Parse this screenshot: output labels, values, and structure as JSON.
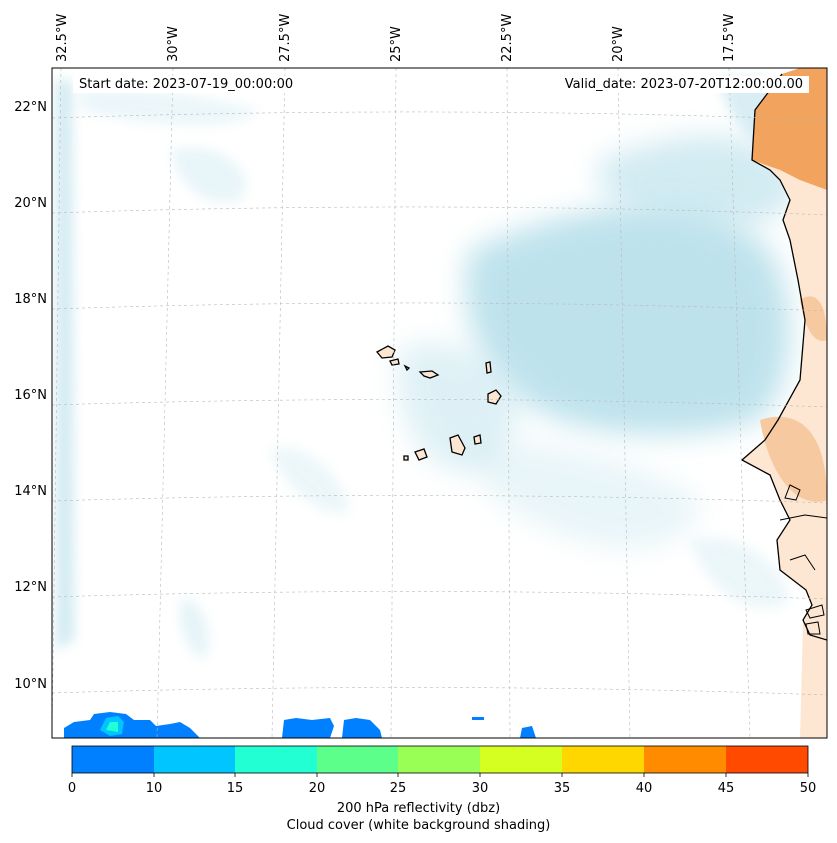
{
  "map": {
    "start_date_text": "Start date: 2023-07-19_00:00:00",
    "valid_date_text": "Valid_date: 2023-07-20T12:00:00.00",
    "lon_labels": [
      "32.5°W",
      "30°W",
      "27.5°W",
      "25°W",
      "22.5°W",
      "20°W",
      "17.5°W"
    ],
    "lat_labels": [
      "22°N",
      "20°N",
      "18°N",
      "16°N",
      "14°N",
      "12°N",
      "10°N"
    ]
  },
  "colorbar": {
    "ticks": [
      "0",
      "10",
      "15",
      "20",
      "25",
      "30",
      "35",
      "40",
      "45",
      "50"
    ],
    "colors": [
      "#0080ff",
      "#00c5ff",
      "#22ffd2",
      "#5cff8a",
      "#9aff55",
      "#d4ff20",
      "#ffd700",
      "#ff8c00",
      "#ff4a00"
    ],
    "label_line1": "200 hPa reflectivity (dbz)",
    "label_line2": "Cloud cover (white background shading)"
  },
  "colors": {
    "cloud": "#a9d9e6",
    "land": "#f2a35e",
    "land_light": "#f7c9a0"
  }
}
